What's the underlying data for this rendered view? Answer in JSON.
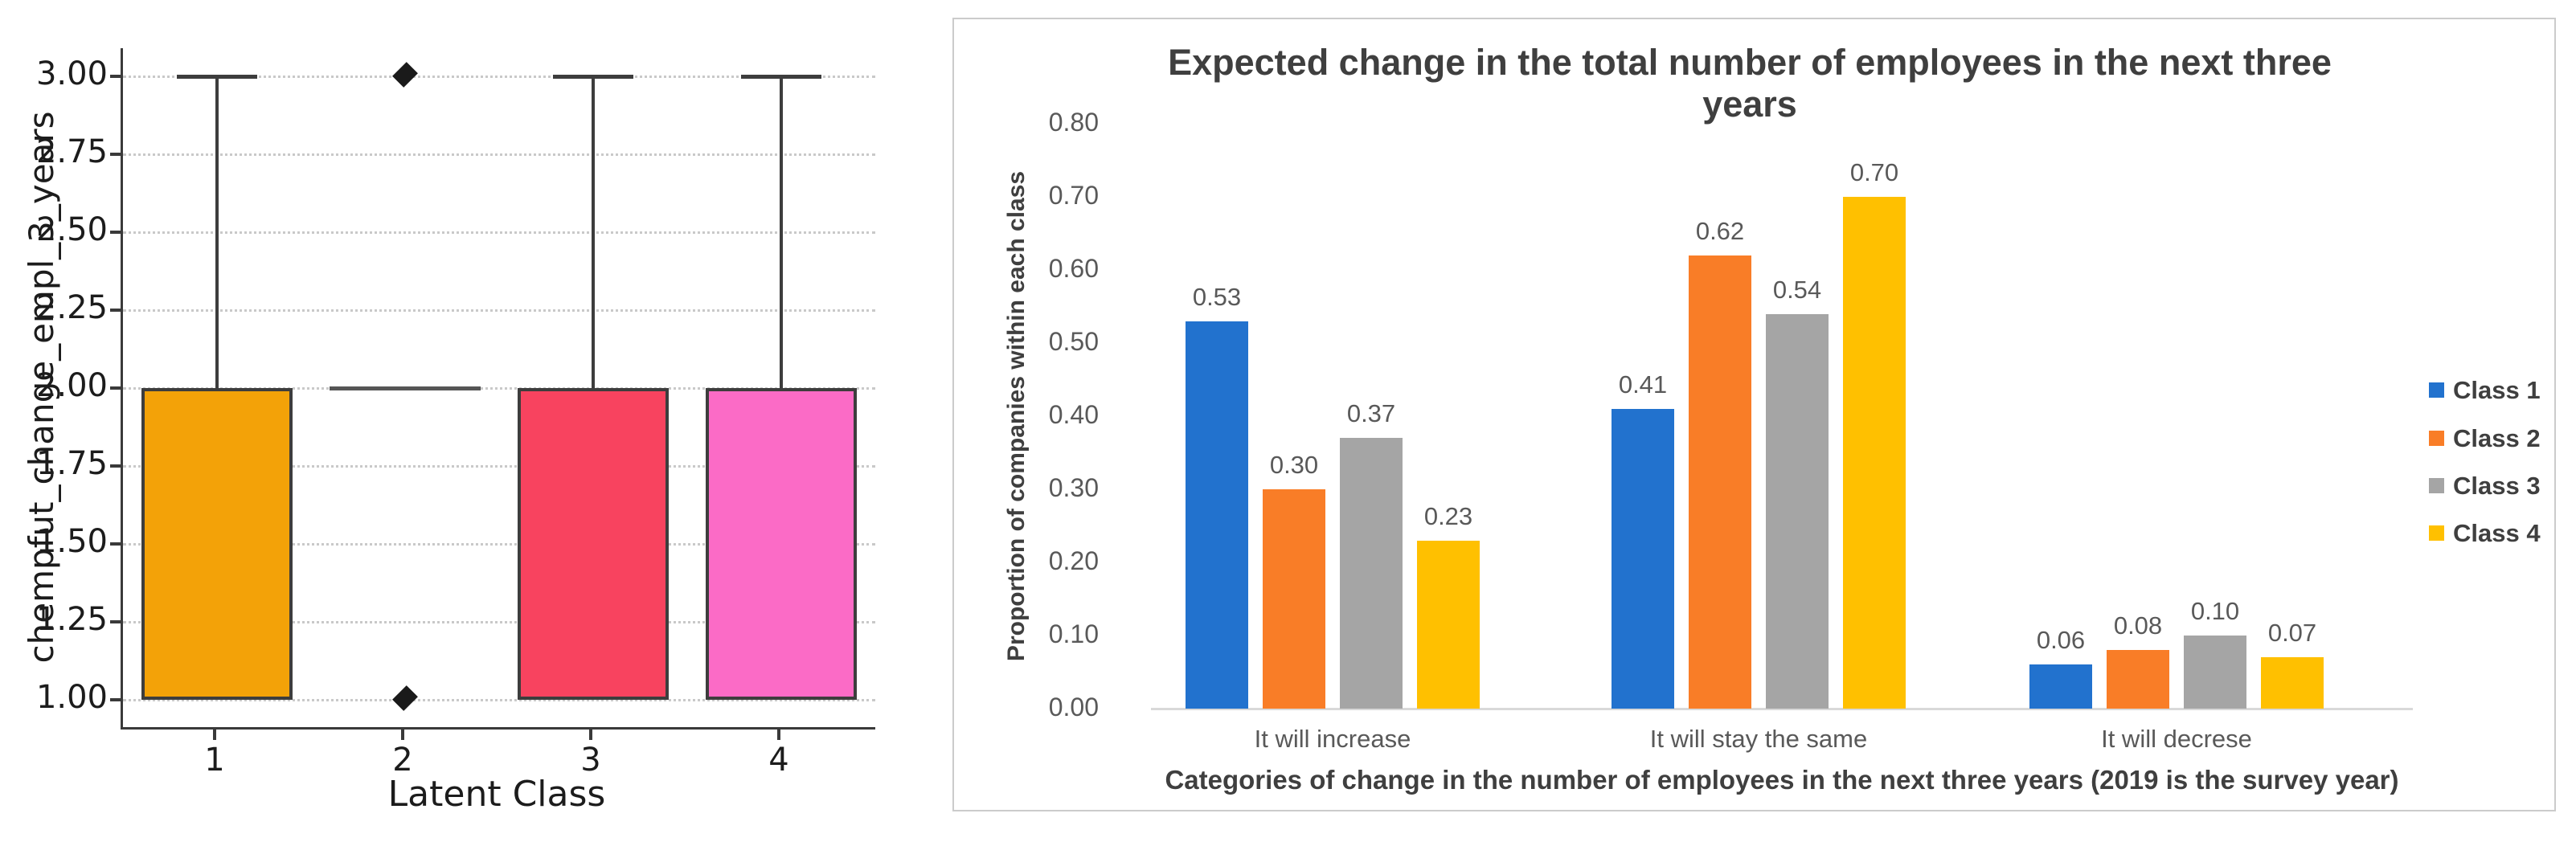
{
  "chart_data": [
    {
      "type": "boxplot",
      "title": "",
      "xlabel": "Latent Class",
      "ylabel": "chempfut_change_empl_3_years",
      "categories": [
        "1",
        "2",
        "3",
        "4"
      ],
      "ylim": [
        0.9,
        3.1
      ],
      "yticks": [
        1.0,
        1.25,
        1.5,
        1.75,
        2.0,
        2.25,
        2.5,
        2.75,
        3.0
      ],
      "grid": "horizontal-dotted",
      "box_edge_color": "#3d3d3d",
      "boxes": [
        {
          "category": "1",
          "q1": 1.0,
          "median": 2.0,
          "q3": 2.0,
          "whisker_low": 1.0,
          "whisker_high": 3.0,
          "outliers": [],
          "fill": "#F3A208"
        },
        {
          "category": "2",
          "q1": 2.0,
          "median": 2.0,
          "q3": 2.0,
          "whisker_low": 2.0,
          "whisker_high": 2.0,
          "outliers": [
            3.0,
            1.0
          ],
          "fill": null
        },
        {
          "category": "3",
          "q1": 1.0,
          "median": 2.0,
          "q3": 2.0,
          "whisker_low": 1.0,
          "whisker_high": 3.0,
          "outliers": [],
          "fill": "#F8435F"
        },
        {
          "category": "4",
          "q1": 1.0,
          "median": 2.0,
          "q3": 2.0,
          "whisker_low": 1.0,
          "whisker_high": 3.0,
          "outliers": [],
          "fill": "#FB6BC6"
        }
      ]
    },
    {
      "type": "bar",
      "title": "Expected change in the total number of employees in the next three years",
      "xlabel": "Categories of change in the number of employees in the next three years (2019 is the survey year)",
      "ylabel": "Proportion of companies within each class",
      "categories": [
        "It will increase",
        "It will stay the same",
        "It will decrese"
      ],
      "series": [
        {
          "name": "Class 1",
          "color": "#2272CE",
          "values": [
            0.53,
            0.41,
            0.06
          ]
        },
        {
          "name": "Class 2",
          "color": "#F97D27",
          "values": [
            0.3,
            0.62,
            0.08
          ]
        },
        {
          "name": "Class 3",
          "color": "#A5A5A5",
          "values": [
            0.37,
            0.54,
            0.1
          ]
        },
        {
          "name": "Class 4",
          "color": "#FFC000",
          "values": [
            0.23,
            0.7,
            0.07
          ]
        }
      ],
      "ylim": [
        0.0,
        0.8
      ],
      "yticks": [
        0.0,
        0.1,
        0.2,
        0.3,
        0.4,
        0.5,
        0.6,
        0.7,
        0.8
      ],
      "grid": "off",
      "legend_position": "right",
      "value_labels": true,
      "axis_line_color": "#d9d9d9",
      "tick_label_color": "#595959"
    }
  ]
}
